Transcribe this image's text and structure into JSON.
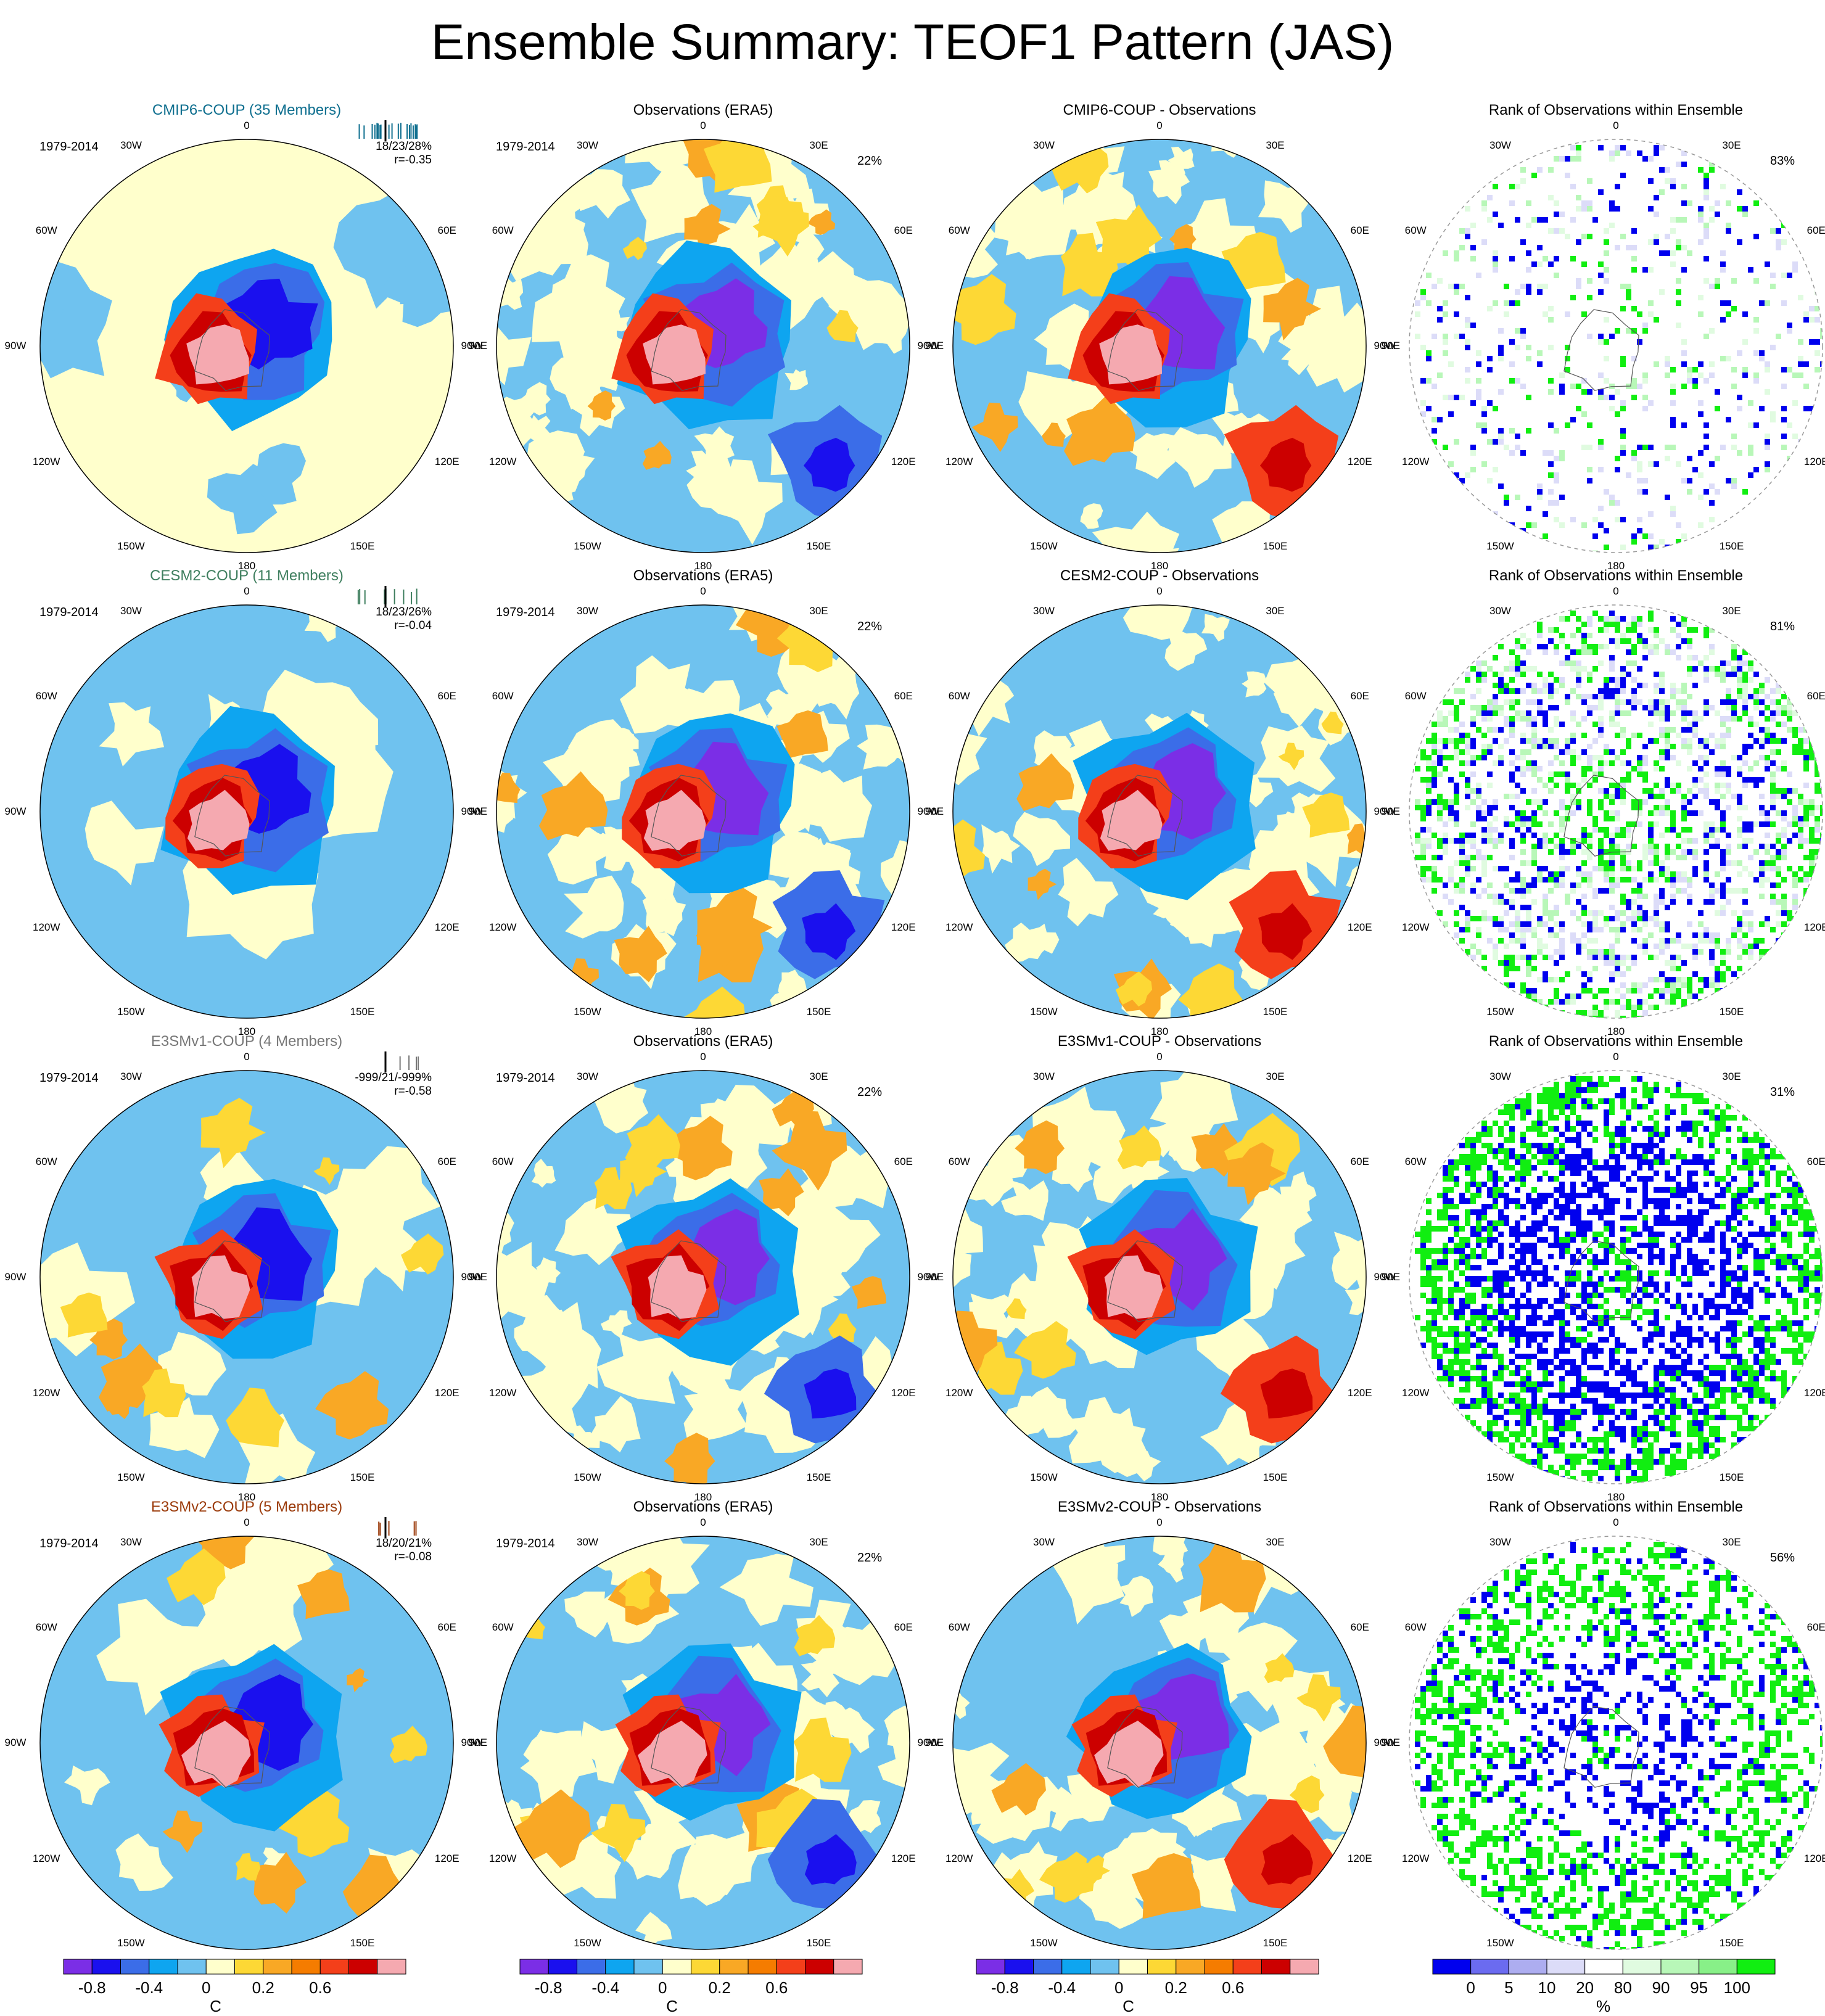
{
  "title": "Ensemble Summary: TEOF1 Pattern (JAS)",
  "lon_labels": [
    "0",
    "30E",
    "60E",
    "90E",
    "120E",
    "150E",
    "180",
    "150W",
    "120W",
    "90W",
    "60W",
    "30W"
  ],
  "colors": {
    "diff": [
      "#7b2ee6",
      "#1a10ee",
      "#3b6de8",
      "#0ea5f0",
      "#6fc2ef",
      "#ffffcc",
      "#fdd835",
      "#f9a825",
      "#f57c00",
      "#f43f1a",
      "#cc0000",
      "#f5a9b0"
    ],
    "rank": [
      "#0000ee",
      "#6b6bf0",
      "#adadf0",
      "#dcdcf8",
      "#ffffff",
      "#e0fbe0",
      "#b8f7b8",
      "#88f088",
      "#11ee11"
    ],
    "cmip6": "#0f6f8f",
    "cesm2": "#3f7f5f",
    "e3smv1": "#777777",
    "e3smv2": "#9b3b0b"
  },
  "colorbars": {
    "diff": {
      "labels": [
        "-0.8",
        "-0.4",
        "0",
        "0.2",
        "0.6"
      ],
      "title": "C"
    },
    "rank": {
      "labels": [
        "0",
        "5",
        "10",
        "20",
        "80",
        "90",
        "95",
        "100"
      ],
      "title": "%"
    }
  },
  "rows": [
    {
      "model": {
        "title": "CMIP6-COUP (35 Members)",
        "period": "1979-2014",
        "stats1": "18/23/28%",
        "stats2": "r=-0.35",
        "stats_lon": "30E"
      },
      "obs": {
        "title": "Observations (ERA5)",
        "period": "1979-2014",
        "pct": "22%"
      },
      "diff": {
        "title": "CMIP6-COUP - Observations"
      },
      "rank": {
        "title": "Rank of Observations within Ensemble",
        "pct": "83%"
      }
    },
    {
      "model": {
        "title": "CESM2-COUP (11 Members)",
        "period": "1979-2014",
        "stats1": "18/23/26%",
        "stats2": "r=-0.04",
        "stats_lon": "30E"
      },
      "obs": {
        "title": "Observations (ERA5)",
        "period": "1979-2014",
        "pct": "22%"
      },
      "diff": {
        "title": "CESM2-COUP - Observations"
      },
      "rank": {
        "title": "Rank of Observations within Ensemble",
        "pct": "81%"
      }
    },
    {
      "model": {
        "title": "E3SMv1-COUP (4 Members)",
        "period": "1979-2014",
        "stats1": "-999/21/-999%",
        "stats2": "r=-0.58",
        "stats_lon": "30E"
      },
      "obs": {
        "title": "Observations (ERA5)",
        "period": "1979-2014",
        "pct": "22%"
      },
      "diff": {
        "title": "E3SMv1-COUP - Observations"
      },
      "rank": {
        "title": "Rank of Observations within Ensemble",
        "pct": "31%"
      }
    },
    {
      "model": {
        "title": "E3SMv2-COUP (5 Members)",
        "period": "1979-2014",
        "stats1": "18/20/21%",
        "stats2": "r=-0.08",
        "stats_lon": "30E"
      },
      "obs": {
        "title": "Observations (ERA5)",
        "period": "1979-2014",
        "pct": "22%"
      },
      "diff": {
        "title": "E3SMv2-COUP - Observations"
      },
      "rank": {
        "title": "Rank of Observations within Ensemble",
        "pct": "56%"
      }
    }
  ],
  "chart_data": {
    "type": "heatmap",
    "title": "Ensemble Summary: TEOF1 Pattern (JAS)",
    "projection": "polar stereographic (south pole)",
    "period": "1979-2014",
    "panels_per_row": [
      "Model ensemble mean",
      "Observations (ERA5)",
      "Model - Observations",
      "Rank of Observations within Ensemble"
    ],
    "variance_explained": {
      "obs": "22%",
      "CMIP6-COUP": "18/23/28%",
      "CESM2-COUP": "18/23/26%",
      "E3SMv1-COUP": "-999/21/-999%",
      "E3SMv2-COUP": "18/20/21%"
    },
    "pattern_correlation": {
      "CMIP6-COUP": -0.35,
      "CESM2-COUP": -0.04,
      "E3SMv1-COUP": -0.58,
      "E3SMv2-COUP": -0.08
    },
    "rank_percent": {
      "CMIP6-COUP": 83,
      "CESM2-COUP": 81,
      "E3SMv1-COUP": 31,
      "E3SMv2-COUP": 56
    },
    "colorbar_ticks_C": [
      -0.8,
      -0.4,
      0,
      0.2,
      0.6
    ],
    "colorbar_ticks_percent": [
      0,
      5,
      10,
      20,
      80,
      90,
      95,
      100
    ]
  }
}
